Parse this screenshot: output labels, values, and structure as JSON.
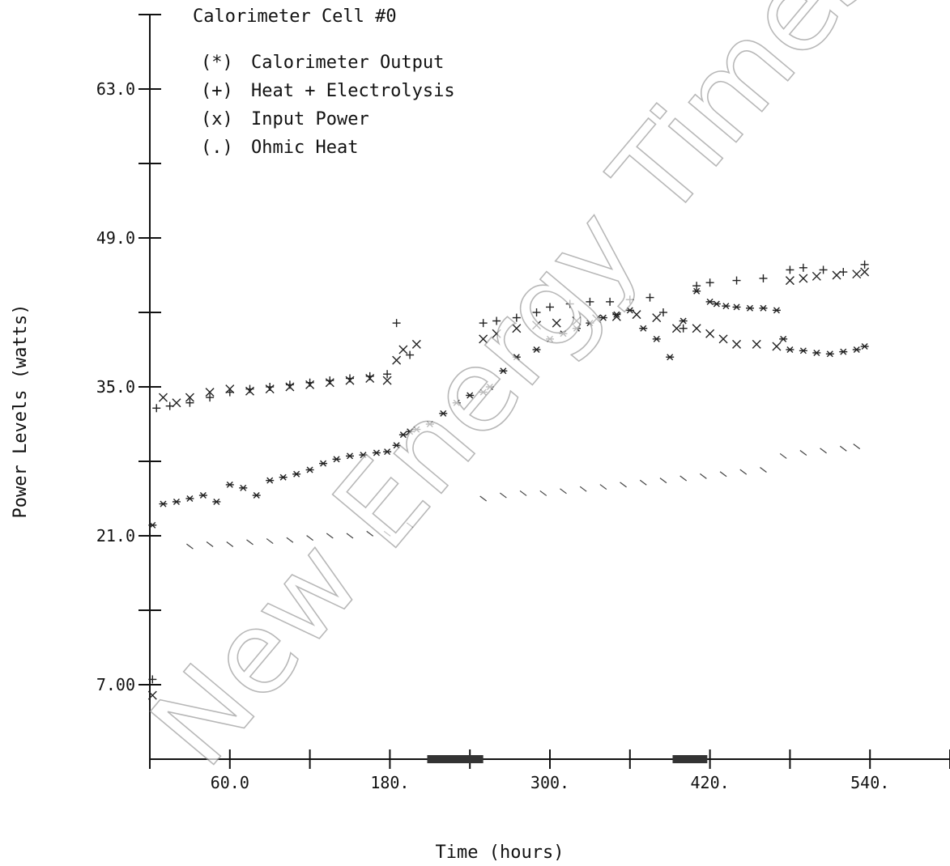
{
  "chart_data": {
    "type": "scatter",
    "title": "Calorimeter Cell #0",
    "xlabel": "Time (hours)",
    "ylabel": "Power Levels (watts)",
    "xlim": [
      0,
      600
    ],
    "ylim": [
      0,
      70
    ],
    "y_ticks": [
      7,
      14,
      21,
      28,
      35,
      42,
      49,
      56,
      63,
      70
    ],
    "y_tick_labels": [
      "7.00",
      "",
      "21.0",
      "",
      "35.0",
      "",
      "49.0",
      "",
      "63.0",
      ""
    ],
    "x_ticks": [
      0,
      60,
      120,
      180,
      240,
      300,
      360,
      420,
      480,
      540,
      600
    ],
    "x_tick_labels": [
      "",
      "60.0",
      "",
      "180.",
      "",
      "300.",
      "",
      "420.",
      "",
      "540.",
      ""
    ],
    "grid": false,
    "legend_position": "top-left",
    "series": [
      {
        "name": "Calorimeter Output",
        "marker": "(*)",
        "symbol": "*",
        "x": [
          2,
          10,
          20,
          30,
          40,
          50,
          60,
          70,
          80,
          90,
          100,
          110,
          120,
          130,
          140,
          150,
          160,
          170,
          178,
          185,
          190,
          195,
          200,
          210,
          220,
          230,
          240,
          250,
          255,
          265,
          275,
          290,
          300,
          310,
          320,
          330,
          340,
          350,
          360,
          370,
          380,
          390,
          400,
          410,
          420,
          425,
          432,
          440,
          450,
          460,
          470,
          475,
          480,
          490,
          500,
          510,
          520,
          530,
          536
        ],
        "y": [
          22,
          24,
          24.2,
          24.5,
          24.8,
          24.2,
          25.8,
          25.5,
          24.8,
          26.2,
          26.5,
          26.8,
          27.2,
          27.8,
          28.2,
          28.5,
          28.6,
          28.8,
          28.9,
          29.5,
          30.5,
          30.8,
          31,
          31.5,
          32.5,
          33.5,
          34.2,
          34.5,
          35,
          36.5,
          37.8,
          38.5,
          39.5,
          40,
          40.5,
          41,
          41.5,
          41.8,
          42.2,
          40.5,
          39.5,
          37.8,
          41.2,
          44,
          43,
          42.8,
          42.6,
          42.5,
          42.4,
          42.4,
          42.2,
          39.5,
          38.5,
          38.4,
          38.2,
          38.1,
          38.3,
          38.5,
          38.8
        ],
        "y_note": "segmented; gaps in x during ~200-250 and ~390-410"
      },
      {
        "name": "Heat + Electrolysis",
        "marker": "(+)",
        "symbol": "+",
        "x": [
          2,
          5,
          15,
          30,
          45,
          60,
          75,
          90,
          105,
          120,
          135,
          150,
          165,
          178,
          185,
          195,
          250,
          260,
          275,
          290,
          300,
          315,
          330,
          345,
          360,
          375,
          385,
          400,
          410,
          420,
          440,
          460,
          480,
          490,
          505,
          520,
          536
        ],
        "y": [
          7.5,
          33,
          33.2,
          33.5,
          34,
          34.5,
          34.8,
          35,
          35.2,
          35.4,
          35.6,
          35.8,
          36,
          36.2,
          41,
          38,
          41,
          41.2,
          41.5,
          42,
          42.5,
          42.8,
          43,
          43,
          43.2,
          43.4,
          42,
          40.5,
          44.5,
          44.8,
          45,
          45.2,
          46,
          46.2,
          46,
          45.8,
          46.5
        ]
      },
      {
        "name": "Input Power",
        "marker": "(x)",
        "symbol": "x",
        "x": [
          2,
          10,
          20,
          30,
          45,
          60,
          75,
          90,
          105,
          120,
          135,
          150,
          165,
          178,
          185,
          190,
          200,
          250,
          260,
          275,
          290,
          305,
          320,
          335,
          350,
          365,
          380,
          395,
          410,
          420,
          430,
          440,
          455,
          470,
          480,
          490,
          500,
          515,
          530,
          536
        ],
        "y": [
          6,
          34,
          33.5,
          34,
          34.5,
          34.8,
          34.6,
          34.8,
          35,
          35.2,
          35.4,
          35.6,
          35.8,
          35.6,
          37.5,
          38.5,
          39,
          39.5,
          40,
          40.5,
          40.8,
          41,
          41.2,
          41.4,
          41.6,
          41.8,
          41.5,
          40.5,
          40.5,
          40,
          39.5,
          39,
          39,
          38.8,
          45,
          45.2,
          45.4,
          45.5,
          45.6,
          45.8
        ]
      },
      {
        "name": "Ohmic Heat",
        "marker": "(.)",
        "symbol": ".",
        "x": [
          30,
          45,
          60,
          75,
          90,
          105,
          120,
          135,
          150,
          165,
          178,
          195,
          250,
          265,
          280,
          295,
          310,
          325,
          340,
          355,
          370,
          385,
          400,
          415,
          430,
          445,
          460,
          475,
          490,
          505,
          520,
          530
        ],
        "y": [
          20,
          20.2,
          20.2,
          20.4,
          20.5,
          20.6,
          20.8,
          21,
          21,
          21.2,
          21.2,
          22,
          24.5,
          24.8,
          25,
          25,
          25.2,
          25.4,
          25.6,
          25.8,
          26,
          26.2,
          26.4,
          26.6,
          26.8,
          27,
          27.2,
          28.5,
          28.8,
          29,
          29.2,
          29.4
        ]
      }
    ],
    "x_axis_markers": [
      {
        "from": 208,
        "to": 250
      },
      {
        "from": 392,
        "to": 418
      }
    ]
  },
  "watermark": "New Energy Times"
}
